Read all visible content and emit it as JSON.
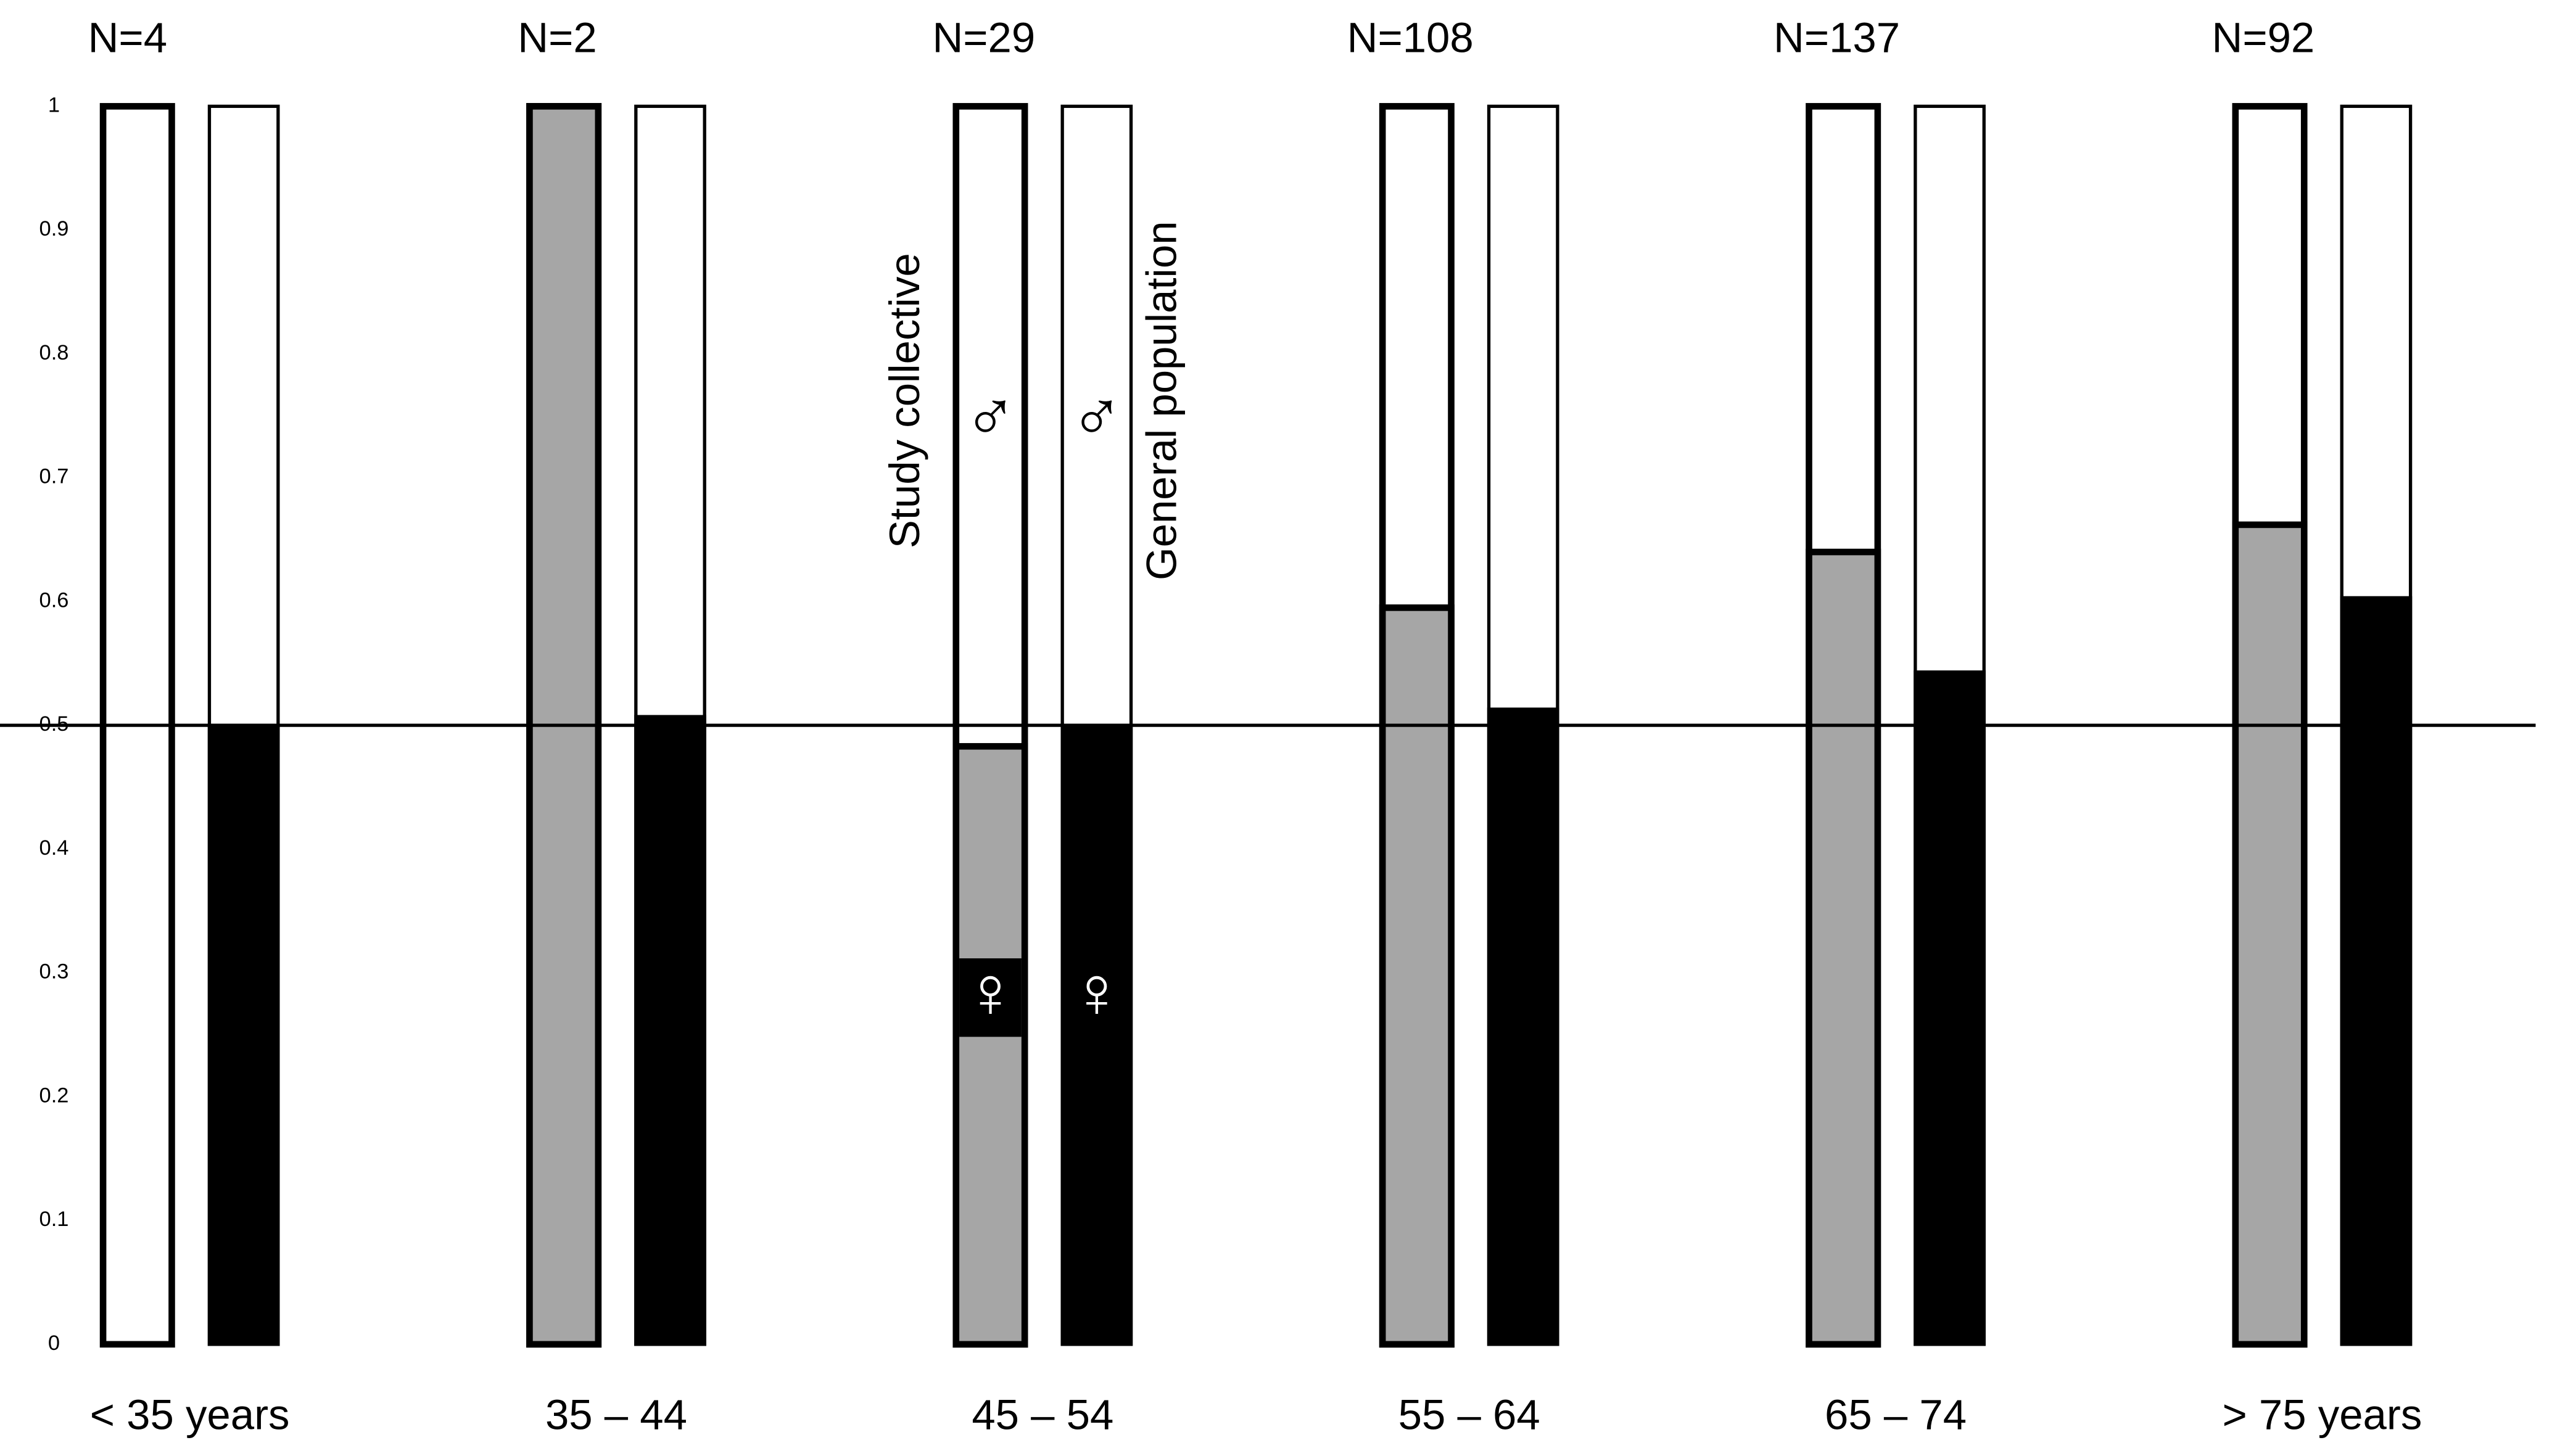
{
  "chart_data": {
    "type": "bar",
    "group_labels": [
      "N=4",
      "N=2",
      "N=29",
      "N=108",
      "N=137",
      "N=92"
    ],
    "categories": [
      "< 35 years",
      "35 – 44",
      "45 – 54",
      "55 – 64",
      "65 – 74",
      "> 75 years"
    ],
    "series": [
      {
        "name": "Study collective",
        "color": "#a6a6a6",
        "values": [
          0,
          1.0,
          0.483,
          0.595,
          0.64,
          0.662
        ]
      },
      {
        "name": "General population",
        "color": "#000000",
        "values": [
          0.5,
          0.507,
          0.5,
          0.513,
          0.543,
          0.603
        ]
      }
    ],
    "male_symbol": "♂",
    "female_symbol": "♀",
    "reference_line": 0.5,
    "ylim": [
      0,
      1
    ],
    "yticks": [
      0,
      0.1,
      0.2,
      0.3,
      0.4,
      0.5,
      0.6,
      0.7,
      0.8,
      0.9,
      1
    ]
  }
}
